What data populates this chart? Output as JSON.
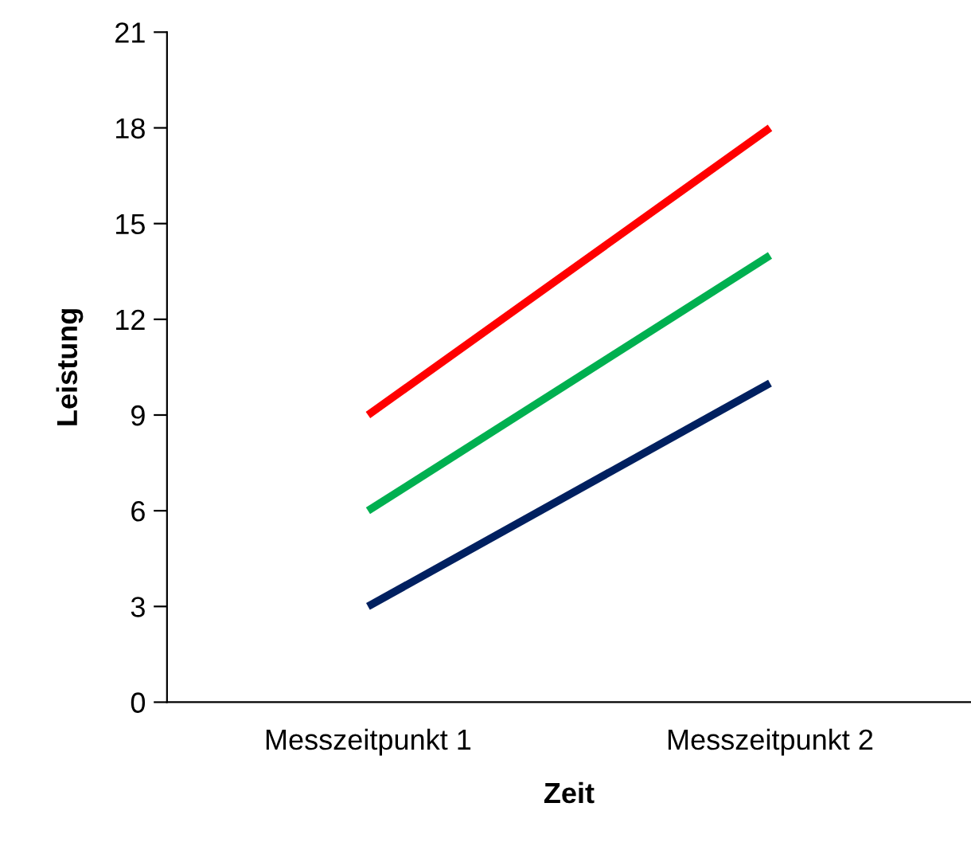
{
  "chart_data": {
    "type": "line",
    "xlabel": "Zeit",
    "ylabel": "Leistung",
    "categories": [
      "Messzeitpunkt 1",
      "Messzeitpunkt 2"
    ],
    "series": [
      {
        "color": "#ff0000",
        "values": [
          9,
          18
        ]
      },
      {
        "color": "#00b050",
        "values": [
          6,
          14
        ]
      },
      {
        "color": "#002060",
        "values": [
          3,
          10
        ]
      }
    ],
    "ylim": [
      0,
      21
    ],
    "yticks": [
      0,
      3,
      6,
      9,
      12,
      15,
      18,
      21
    ],
    "grid": false,
    "legend": false,
    "marker": "none",
    "line_style": "solid"
  }
}
